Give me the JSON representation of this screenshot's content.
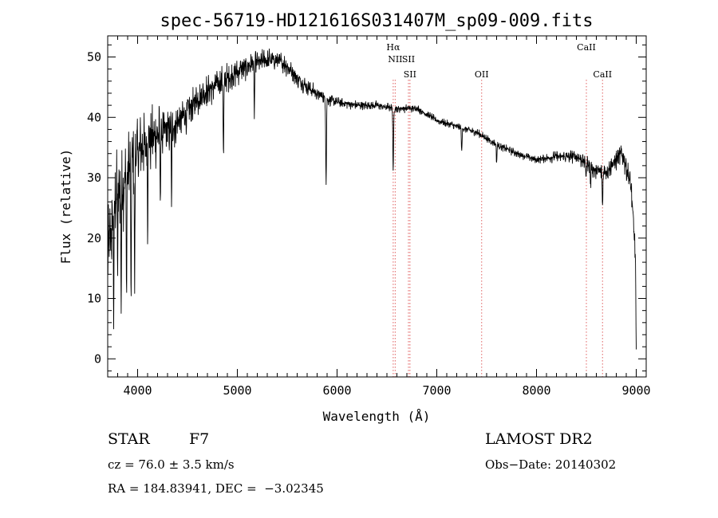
{
  "chart_data": {
    "type": "line",
    "title": "spec-56719-HD121616S031407M_sp09-009.fits",
    "xlabel": "Wavelength (Å)",
    "ylabel": "Flux (relative)",
    "xlim": [
      3700,
      9100
    ],
    "ylim": [
      -3,
      53.5
    ],
    "xticks": [
      "4000",
      "5000",
      "6000",
      "7000",
      "8000",
      "9000"
    ],
    "yticks": [
      "0",
      "10",
      "20",
      "30",
      "40",
      "50"
    ],
    "grid": false,
    "series": [
      {
        "continuum": {
          "x": [
            3700,
            3750,
            3800,
            3850,
            3900,
            3950,
            4000,
            4100,
            4200,
            4300,
            4400,
            4500,
            4600,
            4700,
            4800,
            4900,
            5000,
            5100,
            5200,
            5300,
            5400,
            5500,
            5600,
            5700,
            5800,
            5900,
            6000,
            6200,
            6400,
            6600,
            6800,
            7000,
            7200,
            7400,
            7600,
            7800,
            8000,
            8200,
            8400,
            8500,
            8600,
            8700,
            8800,
            8850,
            8900,
            8950,
            9000
          ],
          "y": [
            16,
            23,
            28,
            28,
            31,
            33,
            34,
            36,
            37,
            38,
            39,
            41,
            43,
            44.5,
            45.5,
            46.5,
            47.5,
            48.5,
            49,
            49.5,
            49.5,
            48.5,
            46.5,
            45,
            44,
            43,
            42.5,
            42,
            42,
            41.5,
            41.5,
            39.5,
            38.5,
            37.5,
            35.5,
            34,
            33,
            33.5,
            33.5,
            32.5,
            31,
            31,
            33,
            34,
            32,
            28,
            15
          ]
        },
        "absorption_lines": [
          {
            "x": 3760,
            "depth": 16
          },
          {
            "x": 3800,
            "depth": 14
          },
          {
            "x": 3835,
            "depth": 20
          },
          {
            "x": 3889,
            "depth": 20
          },
          {
            "x": 3934,
            "depth": 25
          },
          {
            "x": 3970,
            "depth": 22
          },
          {
            "x": 4101,
            "depth": 14
          },
          {
            "x": 4227,
            "depth": 10
          },
          {
            "x": 4340,
            "depth": 14
          },
          {
            "x": 4861,
            "depth": 13
          },
          {
            "x": 5170,
            "depth": 8
          },
          {
            "x": 5890,
            "depth": 14
          },
          {
            "x": 6563,
            "depth": 11
          },
          {
            "x": 7250,
            "depth": 4
          },
          {
            "x": 7600,
            "depth": 3
          },
          {
            "x": 8498,
            "depth": 2
          },
          {
            "x": 8542,
            "depth": 3
          },
          {
            "x": 8662,
            "depth": 6
          },
          {
            "x": 9000,
            "depth": 14
          }
        ],
        "noise_amplitude": [
          {
            "x": 3700,
            "amp": 9
          },
          {
            "x": 4000,
            "amp": 7
          },
          {
            "x": 4500,
            "amp": 3.5
          },
          {
            "x": 5000,
            "amp": 2.5
          },
          {
            "x": 5600,
            "amp": 1.8
          },
          {
            "x": 6000,
            "amp": 0.9
          },
          {
            "x": 7000,
            "amp": 0.7
          },
          {
            "x": 8000,
            "amp": 0.7
          },
          {
            "x": 8600,
            "amp": 1.8
          },
          {
            "x": 9000,
            "amp": 2.5
          }
        ]
      }
    ],
    "line_markers": [
      {
        "x": 6563,
        "label": "Hα",
        "label_row": 1
      },
      {
        "x": 6583,
        "label": "NII",
        "label_row": 2
      },
      {
        "x": 6716,
        "label": "SII",
        "label_row": 2
      },
      {
        "x": 6731,
        "label": "SII",
        "label_row": 3
      },
      {
        "x": 7450,
        "label": "OII",
        "label_row": 3
      },
      {
        "x": 8500,
        "label": "CaII",
        "label_row": 1
      },
      {
        "x": 8662,
        "label": "CaII",
        "label_row": 3
      }
    ],
    "marker_color": "#e06060"
  },
  "info": {
    "object_class": "STAR",
    "subclass": "F7",
    "redshift": "cz = 76.0 ± 3.5 km/s",
    "coords": "RA = 184.83941, DEC =  −3.02345",
    "survey": "LAMOST DR2",
    "obs_date": "Obs−Date: 20140302"
  }
}
